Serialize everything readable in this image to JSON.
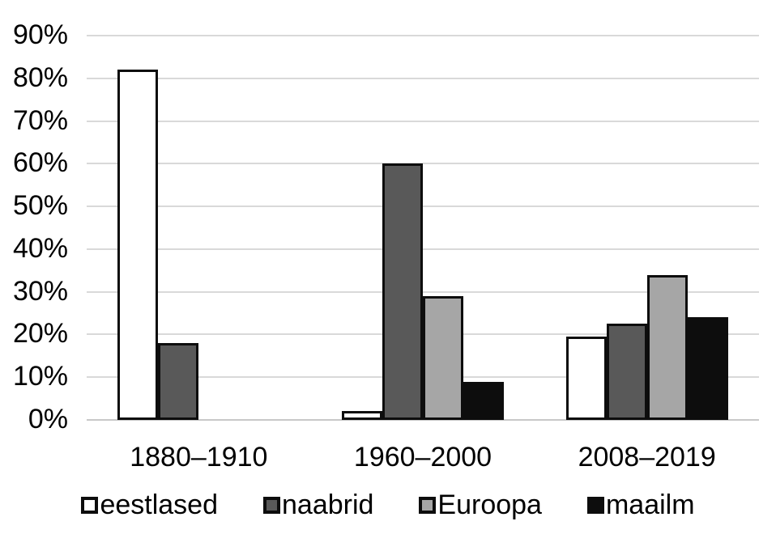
{
  "chart_data": {
    "type": "bar",
    "title": "",
    "xlabel": "",
    "ylabel": "",
    "categories": [
      "1880–1910",
      "1960–2000",
      "2008–2019"
    ],
    "series": [
      {
        "name": "eestlased",
        "values": [
          82,
          2,
          19.5
        ],
        "fill": "#FFFFFF"
      },
      {
        "name": "naabrid",
        "values": [
          18,
          60,
          22.5
        ],
        "fill": "#595959"
      },
      {
        "name": "Euroopa",
        "values": [
          0,
          29,
          34
        ],
        "fill": "#A6A6A6"
      },
      {
        "name": "maailm",
        "values": [
          0,
          9,
          24
        ],
        "fill": "#0D0D0D"
      }
    ],
    "ylim": [
      0,
      90
    ],
    "y_tick_step": 10,
    "y_tick_labels": [
      "0%",
      "10%",
      "20%",
      "30%",
      "40%",
      "50%",
      "60%",
      "70%",
      "80%",
      "90%"
    ],
    "grid": "horizontal",
    "legend_position": "bottom",
    "colors": {
      "background": "#FFFFFF",
      "text": "#000000",
      "gridline": "#D9D9D9",
      "axis_line": "#C8C8C8",
      "bar_border": "#0D0D0D"
    }
  }
}
